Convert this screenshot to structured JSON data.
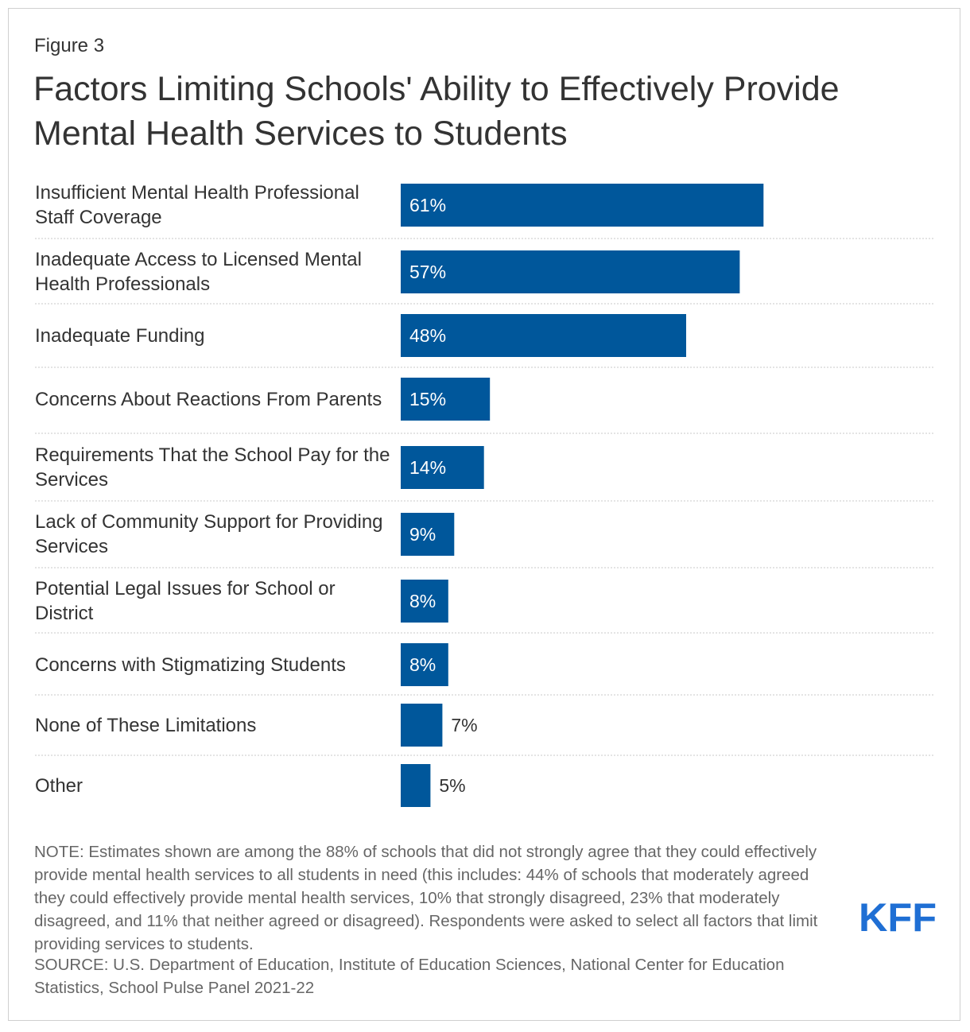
{
  "figure_label": "Figure 3",
  "title": "Factors Limiting Schools' Ability to Effectively Provide Mental Health Services to Students",
  "colors": {
    "bar": "#00579b",
    "text": "#333333",
    "note": "#666666",
    "logo": "#1f6fd4"
  },
  "chart_data": {
    "type": "bar",
    "orientation": "horizontal",
    "title": "Factors Limiting Schools' Ability to Effectively Provide Mental Health Services to Students",
    "categories": [
      "Insufficient Mental Health Professional Staff Coverage",
      "Inadequate Access to Licensed Mental Health Professionals",
      "Inadequate Funding",
      "Concerns About Reactions From Parents",
      "Requirements That the School Pay for the Services",
      "Lack of Community Support for Providing Services",
      "Potential Legal Issues for School or District",
      "Concerns with Stigmatizing Students",
      "None of These Limitations",
      "Other"
    ],
    "values": [
      61,
      57,
      48,
      15,
      14,
      9,
      8,
      8,
      7,
      5
    ],
    "value_labels": [
      "61%",
      "57%",
      "48%",
      "15%",
      "14%",
      "9%",
      "8%",
      "8%",
      "7%",
      "5%"
    ],
    "xlim": [
      0,
      100
    ],
    "xlabel": "",
    "ylabel": ""
  },
  "note": "NOTE: Estimates shown are among the 88% of schools that did not strongly agree that they could effectively provide mental health services to all students in need (this includes: 44% of schools that moderately agreed they could effectively provide mental health services, 10% that strongly disagreed, 23% that moderately disagreed, and 11% that neither agreed or disagreed). Respondents were asked to select all factors that limit providing services to students.",
  "source": "SOURCE: U.S. Department of Education, Institute of Education Sciences, National Center for Education Statistics, School Pulse Panel 2021-22",
  "logo_text": "KFF"
}
